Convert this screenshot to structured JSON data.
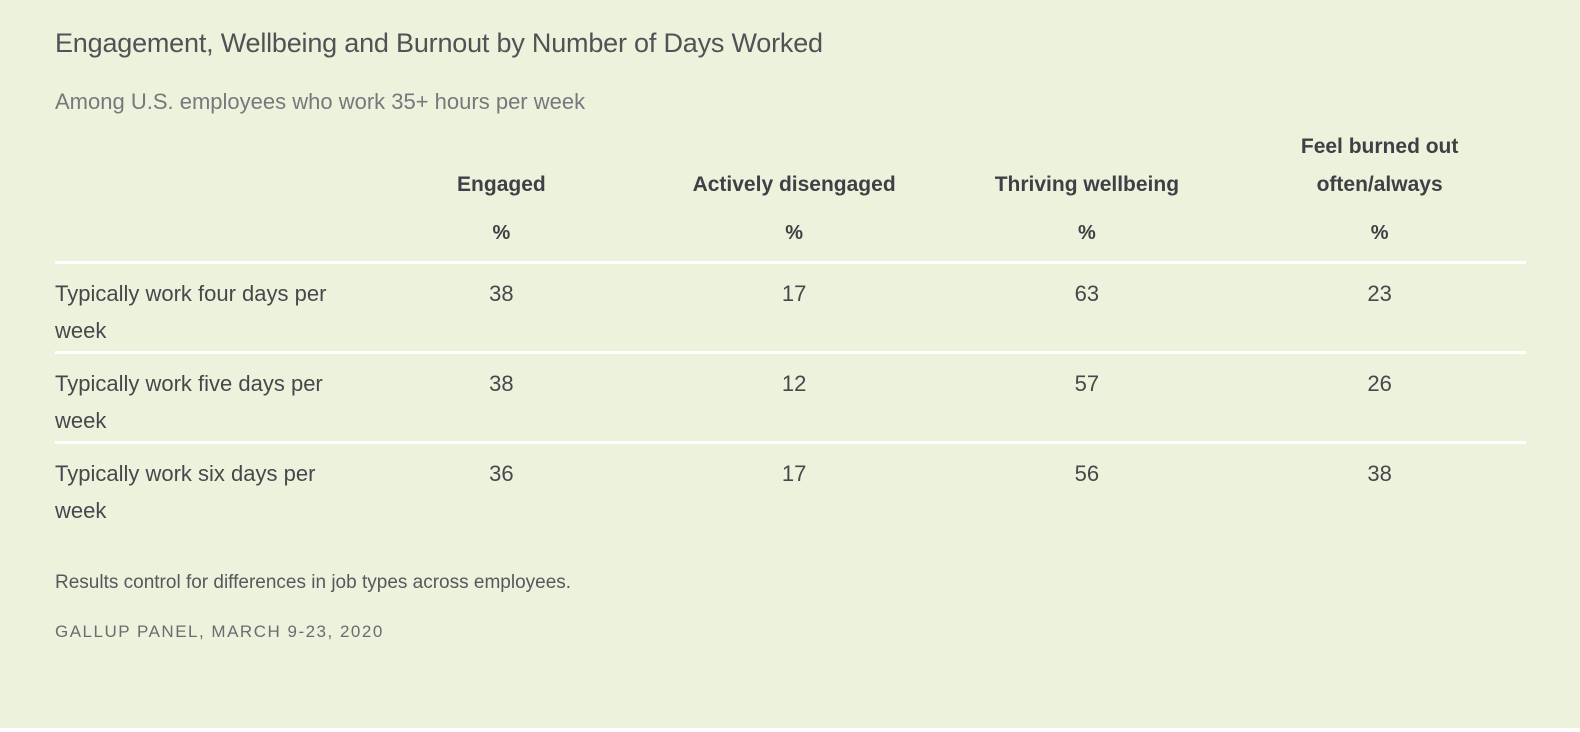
{
  "colors": {
    "background": "#edf2dc",
    "row_divider": "#ffffff",
    "title_text": "#4f5356",
    "subtitle_text": "#75797c",
    "header_text": "#3d4145",
    "body_text": "#45494c",
    "source_text": "#696d70"
  },
  "chart_data": {
    "type": "table",
    "title": "Engagement, Wellbeing and Burnout by Number of Days Worked",
    "subtitle": "Among U.S. employees who work 35+ hours per week",
    "columns": [
      "Engaged",
      "Actively disengaged",
      "Thriving wellbeing",
      "Feel burned out often/always"
    ],
    "unit": "%",
    "rows": [
      {
        "label": "Typically work four days per week",
        "values": [
          38,
          17,
          63,
          23
        ]
      },
      {
        "label": "Typically work five days per week",
        "values": [
          38,
          12,
          57,
          26
        ]
      },
      {
        "label": "Typically work six days per week",
        "values": [
          36,
          17,
          56,
          38
        ]
      }
    ],
    "footnote": "Results control for differences in job types across employees.",
    "source": "GALLUP PANEL, MARCH 9-23, 2020",
    "layout": {
      "legend": "none",
      "grid": "horizontal-white-dividers"
    }
  }
}
